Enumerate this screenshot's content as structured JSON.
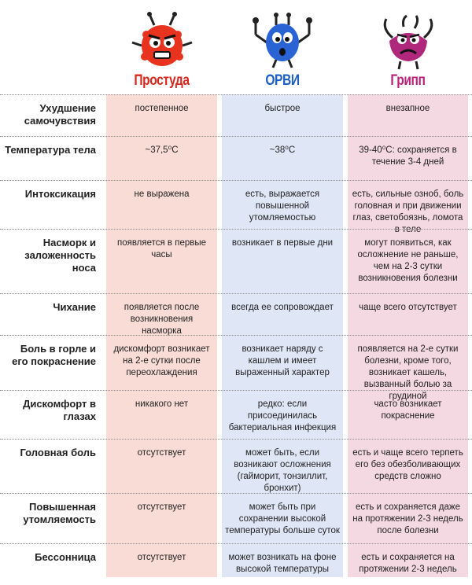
{
  "columns": {
    "cold": {
      "title": "Простуда",
      "color": "#d9261c",
      "icon": "red-germ-icon"
    },
    "orvi": {
      "title": "ОРВИ",
      "color": "#1d5fc4",
      "icon": "blue-germ-icon"
    },
    "flu": {
      "title": "Грипп",
      "color": "#b8207a",
      "icon": "pink-germ-icon"
    }
  },
  "rows": [
    {
      "label": "Ухудшение самочувствия",
      "cold": "постепенное",
      "orvi": "быстрое",
      "flu": "внезапное"
    },
    {
      "label": "Температура тела",
      "cold": "~37,5⁰С",
      "orvi": "~38⁰С",
      "flu": "39-40⁰С: сохраняется в течение 3-4 дней"
    },
    {
      "label": "Интоксикация",
      "cold": "не выражена",
      "orvi": "есть, выражается повышенной утомляемостью",
      "flu": "есть, сильные озноб, боль головная и при движении глаз, светобоязнь, ломота в теле"
    },
    {
      "label": "Насморк и заложенность носа",
      "cold": "появляется в первые часы",
      "orvi": "возникает в первые дни",
      "flu": "могут появиться, как осложнение не раньше, чем на 2-3 сутки возникновения болезни"
    },
    {
      "label": "Чихание",
      "cold": "появляется после возникновения насморка",
      "orvi": "всегда ее сопровождает",
      "flu": "чаще всего отсутствует"
    },
    {
      "label": "Боль в горле и его покраснение",
      "cold": "дискомфорт возникает на 2-е сутки после переохлаждения",
      "orvi": "возникает наряду с кашлем и имеет выраженный характер",
      "flu": "появляется на 2-е сутки болезни, кроме того, возникает кашель, вызванный болью за грудиной"
    },
    {
      "label": "Дискомфорт в глазах",
      "cold": "никакого нет",
      "orvi": "редко: если присоединилась бактериальная инфекция",
      "flu": "часто возникает покраснение"
    },
    {
      "label": "Головная боль",
      "cold": "отсутствует",
      "orvi": "может быть, если возникают осложнения (гайморит, тонзиллит, бронхит)",
      "flu": "есть и чаще всего терпеть его без обезболивающих средств сложно"
    },
    {
      "label": "Повышенная утомляемость",
      "cold": "отсутствует",
      "orvi": "может быть при сохранении высокой температуры больше суток",
      "flu": "есть и сохраняется даже на протяжении 2-3 недель после болезни"
    },
    {
      "label": "Бессонница",
      "cold": "отсутствует",
      "orvi": "может возникать на фоне высокой температуры",
      "flu": "есть и сохраняется на протяжении 2-3 недель"
    }
  ]
}
